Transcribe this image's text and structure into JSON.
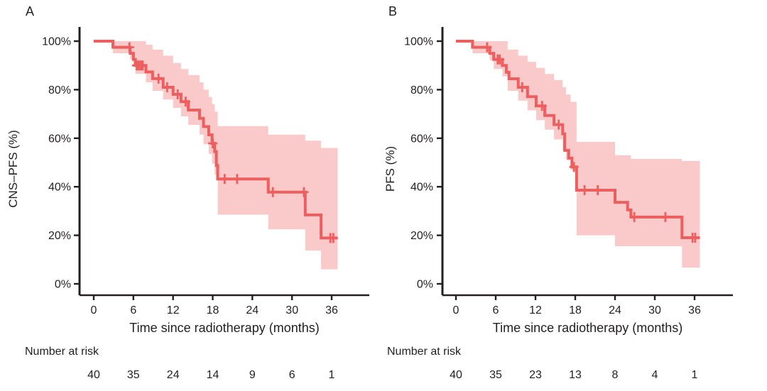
{
  "colors": {
    "line": "#ed5f5f",
    "band": "#facaca",
    "ink": "#231f20",
    "background": "#ffffff"
  },
  "chart_data": [
    {
      "type": "line",
      "subtype": "kaplan_meier_step",
      "panel_label": "A",
      "xlabel": "Time since radiotherapy (months)",
      "ylabel": "CNS–PFS (%)",
      "x_ticks": [
        0,
        6,
        12,
        18,
        24,
        30,
        36
      ],
      "y_tick_labels": [
        "0%",
        "20%",
        "40%",
        "60%",
        "80%",
        "100%"
      ],
      "y_tick_values": [
        0,
        20,
        40,
        60,
        80,
        100
      ],
      "xlim": [
        0,
        42
      ],
      "ylim": [
        0,
        100
      ],
      "grid": false,
      "legend": "none",
      "line_color": "#ed5f5f",
      "band_color": "#facaca",
      "steps": [
        [
          0,
          100
        ],
        [
          2.9,
          97.5
        ],
        [
          5.5,
          95
        ],
        [
          6.0,
          92.5
        ],
        [
          6.3,
          90
        ],
        [
          7.9,
          87.3
        ],
        [
          8.9,
          84.6
        ],
        [
          10.5,
          81.0
        ],
        [
          12.0,
          78.1
        ],
        [
          13.2,
          75.1
        ],
        [
          14.3,
          71.6
        ],
        [
          16.0,
          68.2
        ],
        [
          16.6,
          64.8
        ],
        [
          17.4,
          61.4
        ],
        [
          17.9,
          57.9
        ],
        [
          18.3,
          54.5
        ],
        [
          18.55,
          48.8
        ],
        [
          18.75,
          43.2
        ],
        [
          26.4,
          37.8
        ],
        [
          32.0,
          28.4
        ],
        [
          34.4,
          18.9
        ]
      ],
      "end_t": 36.9,
      "censors": [
        [
          5.4,
          97.5
        ],
        [
          6.5,
          90
        ],
        [
          6.8,
          90
        ],
        [
          7.1,
          90
        ],
        [
          7.4,
          90
        ],
        [
          9.8,
          84.6
        ],
        [
          11.1,
          81.0
        ],
        [
          12.7,
          78.1
        ],
        [
          13.9,
          75.1
        ],
        [
          18.0,
          57.9
        ],
        [
          19.8,
          43.2
        ],
        [
          21.7,
          43.2
        ],
        [
          27.1,
          37.8
        ],
        [
          31.8,
          37.8
        ],
        [
          35.8,
          18.9
        ],
        [
          36.25,
          18.9
        ]
      ],
      "band": [
        [
          2.9,
          100,
          95
        ],
        [
          5.5,
          100,
          92.5
        ],
        [
          6.0,
          100,
          90.5
        ],
        [
          6.3,
          100,
          86.5
        ],
        [
          7.9,
          98.5,
          83
        ],
        [
          8.9,
          96.5,
          79.5
        ],
        [
          10.5,
          94,
          76
        ],
        [
          12.0,
          91,
          72.5
        ],
        [
          13.2,
          88.5,
          69
        ],
        [
          14.3,
          86,
          65.5
        ],
        [
          16.0,
          83,
          61.5
        ],
        [
          16.6,
          80,
          57.5
        ],
        [
          17.4,
          77,
          53.5
        ],
        [
          17.9,
          74,
          49.5
        ],
        [
          18.3,
          71,
          45
        ],
        [
          18.75,
          65,
          28.5
        ],
        [
          26.4,
          61.5,
          22.5
        ],
        [
          32.0,
          59,
          13.7
        ],
        [
          34.4,
          56,
          6
        ]
      ],
      "band_end_t": 36.9,
      "risk_label": "Number at risk",
      "risk_times": [
        0,
        6,
        12,
        18,
        24,
        30,
        36
      ],
      "risk_counts": [
        40,
        35,
        24,
        14,
        9,
        6,
        1
      ]
    },
    {
      "type": "line",
      "subtype": "kaplan_meier_step",
      "panel_label": "B",
      "xlabel": "Time since radiotherapy (months)",
      "ylabel": "PFS (%)",
      "x_ticks": [
        0,
        6,
        12,
        18,
        24,
        30,
        36
      ],
      "y_tick_labels": [
        "0%",
        "20%",
        "40%",
        "60%",
        "80%",
        "100%"
      ],
      "y_tick_values": [
        0,
        20,
        40,
        60,
        80,
        100
      ],
      "xlim": [
        0,
        42
      ],
      "ylim": [
        0,
        100
      ],
      "grid": false,
      "legend": "none",
      "line_color": "#ed5f5f",
      "band_color": "#facaca",
      "steps": [
        [
          0,
          100
        ],
        [
          2.5,
          97.5
        ],
        [
          5.1,
          95
        ],
        [
          5.7,
          92.5
        ],
        [
          7.0,
          90
        ],
        [
          7.6,
          87.2
        ],
        [
          8.0,
          84.5
        ],
        [
          9.4,
          81.0
        ],
        [
          10.8,
          77.1
        ],
        [
          12.1,
          73.3
        ],
        [
          13.4,
          69.4
        ],
        [
          14.8,
          65.6
        ],
        [
          16.1,
          61.8
        ],
        [
          16.4,
          55.0
        ],
        [
          17.0,
          51.8
        ],
        [
          17.5,
          48.2
        ],
        [
          18.2,
          38.6
        ],
        [
          24.0,
          33.6
        ],
        [
          25.9,
          30.5
        ],
        [
          26.4,
          27.5
        ],
        [
          34.1,
          19.0
        ]
      ],
      "end_t": 36.8,
      "censors": [
        [
          4.7,
          97.5
        ],
        [
          6.3,
          92.5
        ],
        [
          6.6,
          92.5
        ],
        [
          10.0,
          81.0
        ],
        [
          13.0,
          73.3
        ],
        [
          15.5,
          65.6
        ],
        [
          17.8,
          48.2
        ],
        [
          19.4,
          38.6
        ],
        [
          21.4,
          38.6
        ],
        [
          26.9,
          27.5
        ],
        [
          31.6,
          27.5
        ],
        [
          35.7,
          19.0
        ],
        [
          36.1,
          19.0
        ]
      ],
      "band": [
        [
          2.5,
          100,
          95
        ],
        [
          5.1,
          100,
          92
        ],
        [
          5.7,
          100,
          88.5
        ],
        [
          7.0,
          100,
          85.5
        ],
        [
          7.8,
          96.5,
          79.5
        ],
        [
          9.4,
          94,
          75.5
        ],
        [
          10.8,
          91.5,
          71.5
        ],
        [
          12.1,
          89,
          67.5
        ],
        [
          13.4,
          86.5,
          63.5
        ],
        [
          14.8,
          84,
          59.5
        ],
        [
          16.1,
          81,
          55
        ],
        [
          16.6,
          78,
          51
        ],
        [
          17.3,
          75,
          47
        ],
        [
          18.2,
          58.5,
          20
        ],
        [
          24.0,
          53,
          15.5
        ],
        [
          26.4,
          51.5,
          15.5
        ],
        [
          34.1,
          50.6,
          6.7
        ]
      ],
      "band_end_t": 36.8,
      "risk_label": "Number at risk",
      "risk_times": [
        0,
        6,
        12,
        18,
        24,
        30,
        36
      ],
      "risk_counts": [
        40,
        35,
        23,
        13,
        8,
        4,
        1
      ]
    }
  ]
}
